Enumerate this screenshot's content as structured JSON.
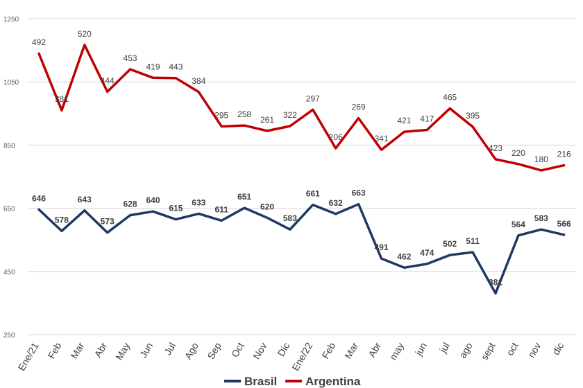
{
  "chart_data": {
    "type": "line",
    "title": "",
    "xlabel": "",
    "ylabel": "",
    "ylim": [
      250,
      1250
    ],
    "yticks": [
      250,
      450,
      650,
      850,
      1050,
      1250
    ],
    "grid": true,
    "legend_position": "bottom-center",
    "categories": [
      "Ene/21",
      "Feb",
      "Mar",
      "Abr",
      "May",
      "Jun",
      "Jul",
      "Ago",
      "Sep",
      "Oct",
      "Nov",
      "Dic",
      "Ene/22",
      "Feb",
      "Mar",
      "Abr",
      "may",
      "jun",
      "jul",
      "ago",
      "sept",
      "oct",
      "nov",
      "dic"
    ],
    "series": [
      {
        "name": "Brasil",
        "color": "#1f3864",
        "values": [
          646,
          578,
          643,
          573,
          628,
          640,
          615,
          633,
          611,
          651,
          620,
          583,
          661,
          632,
          663,
          491,
          462,
          474,
          502,
          511,
          381,
          564,
          583,
          566
        ],
        "position_values": [
          646,
          578,
          643,
          573,
          628,
          640,
          615,
          633,
          611,
          651,
          620,
          583,
          661,
          632,
          663,
          491,
          462,
          474,
          502,
          511,
          381,
          564,
          583,
          566
        ]
      },
      {
        "name": "Argentina",
        "color": "#c00000",
        "values": [
          492,
          381,
          520,
          444,
          453,
          419,
          443,
          384,
          295,
          258,
          261,
          322,
          297,
          206,
          269,
          341,
          421,
          417,
          465,
          395,
          423,
          220,
          180,
          216
        ],
        "position_values": [
          1140,
          960,
          1167,
          1019,
          1090,
          1063,
          1062,
          1018,
          909,
          912,
          895,
          910,
          962,
          840,
          935,
          835,
          892,
          898,
          966,
          908,
          805,
          790,
          770,
          786
        ]
      }
    ]
  }
}
